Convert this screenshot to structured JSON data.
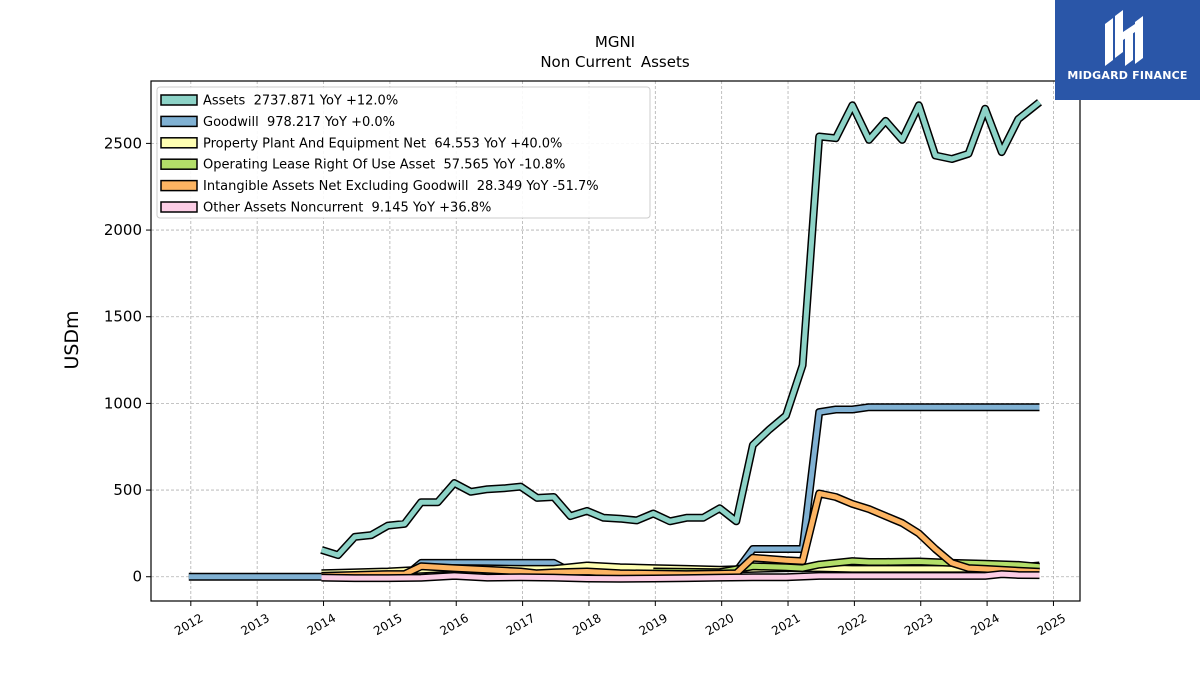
{
  "chart_data": {
    "type": "area",
    "title": "MGNI",
    "subtitle": "Non Current  Assets",
    "ylabel": "USDm",
    "xlabel": "",
    "xlim": [
      2011.4,
      2025.4
    ],
    "ylim": [
      -140,
      2860
    ],
    "yticks": [
      0,
      500,
      1000,
      1500,
      2000,
      2500
    ],
    "xticks": [
      2012,
      2013,
      2014,
      2015,
      2016,
      2017,
      2018,
      2019,
      2020,
      2021,
      2022,
      2023,
      2024,
      2025
    ],
    "grid": true,
    "legend_position": "top-left",
    "series": [
      {
        "name": "Assets  2737.871 YoY +12.0%",
        "color": "#8dd3c7",
        "x": [
          2013.97,
          2014.22,
          2014.47,
          2014.72,
          2014.97,
          2015.22,
          2015.47,
          2015.72,
          2015.97,
          2016.22,
          2016.47,
          2016.72,
          2016.97,
          2017.22,
          2017.47,
          2017.72,
          2017.97,
          2018.22,
          2018.47,
          2018.72,
          2018.97,
          2019.22,
          2019.47,
          2019.72,
          2019.97,
          2020.22,
          2020.47,
          2020.72,
          2020.97,
          2021.22,
          2021.47,
          2021.72,
          2021.97,
          2022.22,
          2022.47,
          2022.72,
          2022.97,
          2023.22,
          2023.47,
          2023.72,
          2023.97,
          2024.22,
          2024.47,
          2024.79
        ],
        "values": [
          155,
          125,
          230,
          240,
          295,
          305,
          430,
          430,
          540,
          490,
          505,
          510,
          520,
          455,
          460,
          350,
          380,
          340,
          335,
          325,
          365,
          320,
          340,
          340,
          395,
          320,
          760,
          850,
          930,
          1220,
          2540,
          2530,
          2720,
          2520,
          2630,
          2520,
          2720,
          2430,
          2410,
          2440,
          2700,
          2450,
          2640,
          2737.871
        ]
      },
      {
        "name": "Goodwill  978.217 YoY +0.0%",
        "color": "#80b1d3",
        "x": [
          2011.97,
          2013.97,
          2014.22,
          2014.47,
          2014.72,
          2014.97,
          2015.22,
          2015.47,
          2015.72,
          2015.97,
          2016.22,
          2016.47,
          2016.72,
          2016.97,
          2017.22,
          2017.47,
          2017.72,
          2017.97,
          2018.22,
          2018.47,
          2018.72,
          2018.97,
          2019.22,
          2019.47,
          2019.72,
          2019.97,
          2020.22,
          2020.47,
          2020.72,
          2020.97,
          2021.22,
          2021.47,
          2021.72,
          2021.97,
          2022.22,
          2022.47,
          2022.72,
          2022.97,
          2023.22,
          2023.47,
          2023.72,
          2023.97,
          2024.22,
          2024.47,
          2024.79
        ],
        "values": [
          0,
          0,
          0,
          0,
          0,
          0,
          0,
          80,
          80,
          80,
          80,
          80,
          80,
          80,
          80,
          80,
          30,
          30,
          30,
          30,
          30,
          30,
          30,
          30,
          30,
          30,
          30,
          160,
          160,
          160,
          160,
          950,
          965,
          965,
          978.217,
          978.217,
          978.217,
          978.217,
          978.217,
          978.217,
          978.217,
          978.217,
          978.217,
          978.217,
          978.217
        ]
      },
      {
        "name": "Property Plant And Equipment Net  64.553 YoY +40.0%",
        "color": "#ffffb3",
        "x": [
          2013.97,
          2014.47,
          2014.97,
          2015.47,
          2015.97,
          2016.47,
          2016.97,
          2017.47,
          2017.97,
          2018.47,
          2018.97,
          2019.47,
          2019.97,
          2020.47,
          2020.97,
          2021.22,
          2021.47,
          2021.97,
          2022.47,
          2022.97,
          2023.47,
          2023.97,
          2024.47,
          2024.79
        ],
        "values": [
          20,
          25,
          30,
          40,
          50,
          48,
          45,
          45,
          65,
          55,
          50,
          45,
          40,
          45,
          50,
          50,
          50,
          45,
          45,
          45,
          45,
          46,
          55,
          64.553
        ]
      },
      {
        "name": "Operating Lease Right Of Use Asset  57.565 YoY -10.8%",
        "color": "#b3de69",
        "x": [
          2018.97,
          2019.47,
          2019.97,
          2020.47,
          2020.97,
          2021.22,
          2021.47,
          2021.97,
          2022.22,
          2022.47,
          2022.97,
          2023.47,
          2023.97,
          2024.47,
          2024.79
        ],
        "values": [
          30,
          28,
          26,
          60,
          55,
          50,
          70,
          90,
          85,
          85,
          88,
          80,
          75,
          68,
          57.565
        ]
      },
      {
        "name": "Intangible Assets Net Excluding Goodwill  28.349 YoY -51.7%",
        "color": "#fdb462",
        "x": [
          2013.97,
          2014.47,
          2014.97,
          2015.22,
          2015.47,
          2015.97,
          2016.47,
          2016.97,
          2017.22,
          2017.47,
          2017.97,
          2018.47,
          2018.97,
          2019.47,
          2019.97,
          2020.22,
          2020.47,
          2020.97,
          2021.22,
          2021.47,
          2021.72,
          2021.97,
          2022.22,
          2022.47,
          2022.72,
          2022.97,
          2023.22,
          2023.47,
          2023.72,
          2023.97,
          2024.47,
          2024.79
        ],
        "values": [
          5,
          10,
          15,
          15,
          60,
          50,
          40,
          30,
          20,
          25,
          30,
          20,
          18,
          15,
          18,
          20,
          110,
          95,
          90,
          480,
          460,
          420,
          390,
          350,
          310,
          250,
          160,
          80,
          50,
          45,
          35,
          28.349
        ]
      },
      {
        "name": "Other Assets Noncurrent  9.145 YoY +36.8%",
        "color": "#fccde5",
        "x": [
          2013.97,
          2014.47,
          2014.97,
          2015.47,
          2015.97,
          2016.47,
          2016.97,
          2017.47,
          2017.97,
          2018.47,
          2018.97,
          2019.47,
          2019.97,
          2020.47,
          2020.97,
          2021.47,
          2021.97,
          2022.47,
          2022.97,
          2023.47,
          2023.97,
          2024.22,
          2024.47,
          2024.79
        ],
        "values": [
          -5,
          -8,
          -8,
          -6,
          5,
          -5,
          -3,
          -5,
          -10,
          -12,
          -10,
          -8,
          -5,
          -3,
          -3,
          5,
          5,
          5,
          5,
          5,
          5,
          15,
          10,
          9.145
        ]
      }
    ]
  },
  "branding": {
    "logo_text": "MIDGARD FINANCE",
    "logo_bg": "#2a56a8"
  }
}
